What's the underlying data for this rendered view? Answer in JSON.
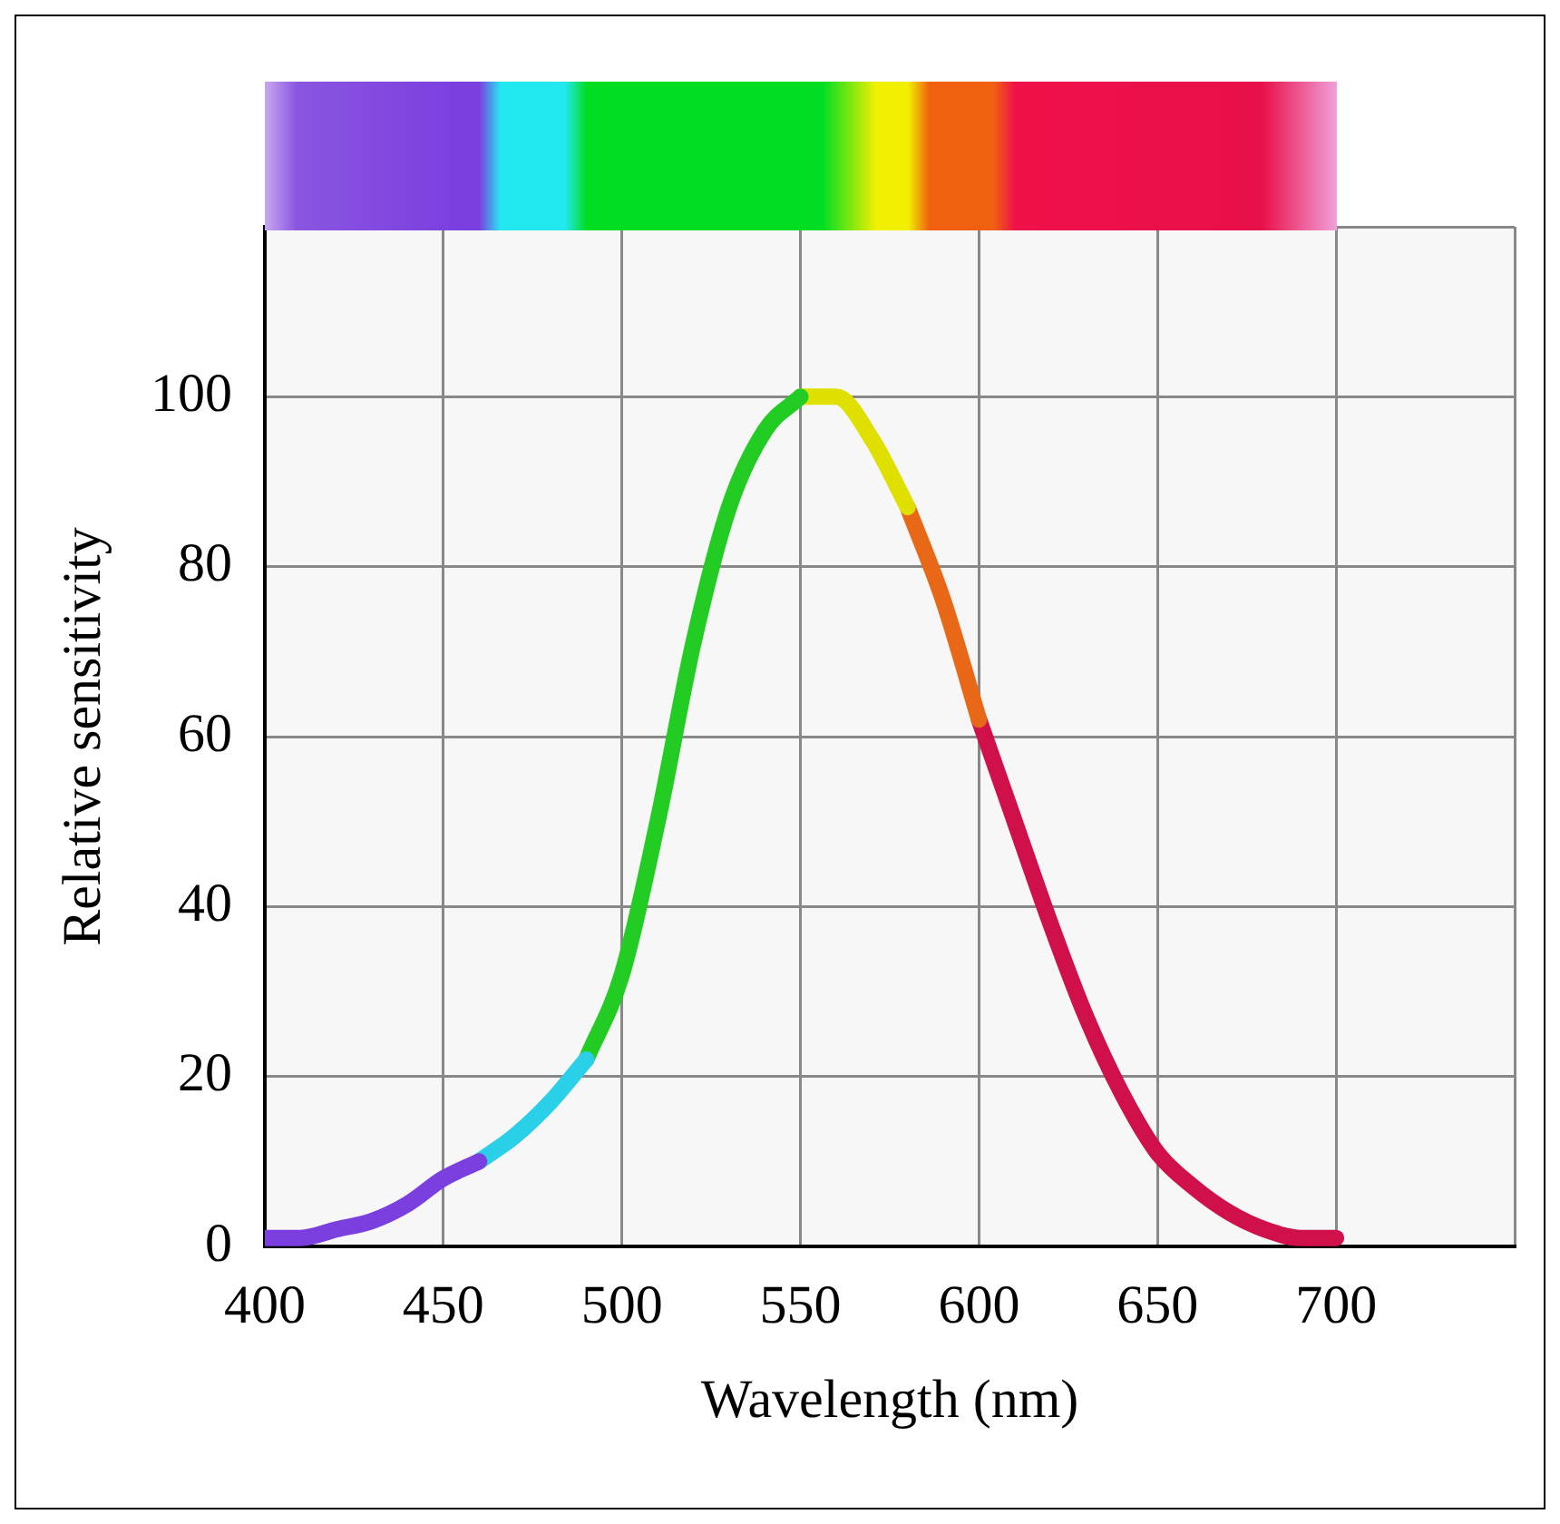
{
  "chart_data": {
    "type": "line",
    "xlabel": "Wavelength (nm)",
    "ylabel": "Relative sensitivity",
    "series": [
      {
        "color": "#7b3fe0",
        "x": [
          400,
          410,
          420,
          430,
          440,
          450,
          460
        ],
        "values": [
          1,
          1,
          2,
          3,
          5,
          8,
          10
        ]
      },
      {
        "color": "#2ad0e8",
        "x": [
          460,
          470,
          480,
          490
        ],
        "values": [
          10,
          13,
          17,
          22
        ]
      },
      {
        "color": "#22cc22",
        "x": [
          490,
          500,
          510,
          520,
          530,
          540,
          550
        ],
        "values": [
          22,
          32,
          50,
          71,
          87,
          96,
          100
        ]
      },
      {
        "color": "#e0e000",
        "x": [
          550,
          560,
          570,
          580
        ],
        "values": [
          100,
          100,
          95,
          87
        ]
      },
      {
        "color": "#e86818",
        "x": [
          580,
          590,
          600
        ],
        "values": [
          87,
          76,
          62
        ]
      },
      {
        "color": "#d0104a",
        "x": [
          600,
          610,
          620,
          630,
          640,
          650,
          660,
          670,
          680,
          690,
          700
        ],
        "values": [
          62,
          50,
          38,
          27,
          18,
          11,
          7,
          4,
          2,
          1,
          1
        ]
      }
    ],
    "xlim": [
      400,
      750
    ],
    "xticks": [
      400,
      450,
      500,
      550,
      600,
      650,
      700,
      {
        "value": 750,
        "label": null
      }
    ],
    "ylim": [
      0,
      120
    ],
    "yticks": [
      0,
      20,
      40,
      60,
      80,
      100,
      {
        "value": 120,
        "label": null
      }
    ],
    "grid": true,
    "legend": false,
    "marker": "none",
    "line_style": "solid"
  }
}
